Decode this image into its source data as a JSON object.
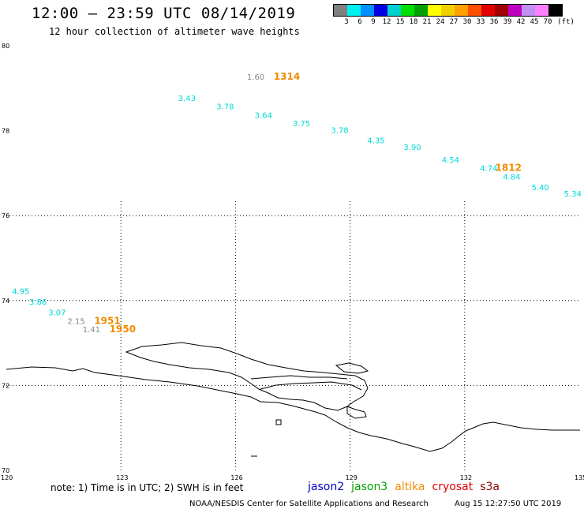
{
  "header": {
    "title": "12:00 – 23:59 UTC 08/14/2019",
    "subtitle": "12 hour collection of altimeter wave heights"
  },
  "legend": {
    "colors": [
      "#808080",
      "#00f0f0",
      "#0090ff",
      "#0000e0",
      "#00d0d0",
      "#00e000",
      "#00a000",
      "#ffff00",
      "#f0d000",
      "#ffa000",
      "#ff5000",
      "#e00000",
      "#a00000",
      "#c000c0",
      "#c090f0",
      "#ff80ff",
      "#000000"
    ],
    "labels": [
      "3",
      "6",
      "9",
      "12",
      "15",
      "18",
      "21",
      "24",
      "27",
      "30",
      "33",
      "36",
      "39",
      "42",
      "45",
      "70"
    ],
    "unit": "(ft)"
  },
  "map": {
    "lat_labels": [
      "80",
      "78",
      "76",
      "74",
      "72",
      "70"
    ],
    "lon_labels": [
      "120",
      "123",
      "126",
      "129",
      "132",
      "135"
    ]
  },
  "observations": [
    {
      "text": "1.60",
      "color": "#888888",
      "lon": 126.3,
      "lat": 79.2
    },
    {
      "text": "3.43",
      "color": "#00d8d8",
      "lon": 124.5,
      "lat": 78.7
    },
    {
      "text": "3.78",
      "color": "#00d8d8",
      "lon": 125.5,
      "lat": 78.5
    },
    {
      "text": "3.64",
      "color": "#00d8d8",
      "lon": 126.5,
      "lat": 78.3
    },
    {
      "text": "3.75",
      "color": "#00d8d8",
      "lon": 127.5,
      "lat": 78.1
    },
    {
      "text": "3.78",
      "color": "#00d8d8",
      "lon": 128.5,
      "lat": 77.95
    },
    {
      "text": "4.35",
      "color": "#00d8d8",
      "lon": 129.45,
      "lat": 77.7
    },
    {
      "text": "3.90",
      "color": "#00d8d8",
      "lon": 130.4,
      "lat": 77.55
    },
    {
      "text": "4.54",
      "color": "#00d8d8",
      "lon": 131.4,
      "lat": 77.25
    },
    {
      "text": "4.74",
      "color": "#00d8d8",
      "lon": 132.4,
      "lat": 77.05
    },
    {
      "text": "4.84",
      "color": "#00d8d8",
      "lon": 133.0,
      "lat": 76.85
    },
    {
      "text": "5.40",
      "color": "#00d8d8",
      "lon": 133.75,
      "lat": 76.6
    },
    {
      "text": "5.34",
      "color": "#00d8d8",
      "lon": 134.6,
      "lat": 76.45
    },
    {
      "text": "4.95",
      "color": "#00d8d8",
      "lon": 120.15,
      "lat": 74.15
    },
    {
      "text": "3.86",
      "color": "#00d8d8",
      "lon": 120.6,
      "lat": 73.9
    },
    {
      "text": "3.07",
      "color": "#00d8d8",
      "lon": 121.1,
      "lat": 73.65
    },
    {
      "text": "2.15",
      "color": "#888888",
      "lon": 121.6,
      "lat": 73.45
    },
    {
      "text": "1.41",
      "color": "#888888",
      "lon": 122.0,
      "lat": 73.25
    }
  ],
  "pass_times": [
    {
      "text": "1314",
      "lon": 127.0,
      "lat": 79.2
    },
    {
      "text": "1812",
      "lon": 132.8,
      "lat": 77.05
    },
    {
      "text": "1951",
      "lon": 122.3,
      "lat": 73.45
    },
    {
      "text": "1950",
      "lon": 122.7,
      "lat": 73.25
    }
  ],
  "note": "note: 1) Time is in UTC; 2) SWH is in feet",
  "satellites": [
    {
      "name": "jason2",
      "color": "#0000d0"
    },
    {
      "name": "jason3",
      "color": "#00a000"
    },
    {
      "name": "altika",
      "color": "#f08c00"
    },
    {
      "name": "cryosat",
      "color": "#e00000"
    },
    {
      "name": "s3a",
      "color": "#900000"
    }
  ],
  "footer": {
    "credit": "NOAA/NESDIS Center for Satellite Applications and Research",
    "timestamp": "Aug 15 12:27:50 UTC 2019"
  }
}
